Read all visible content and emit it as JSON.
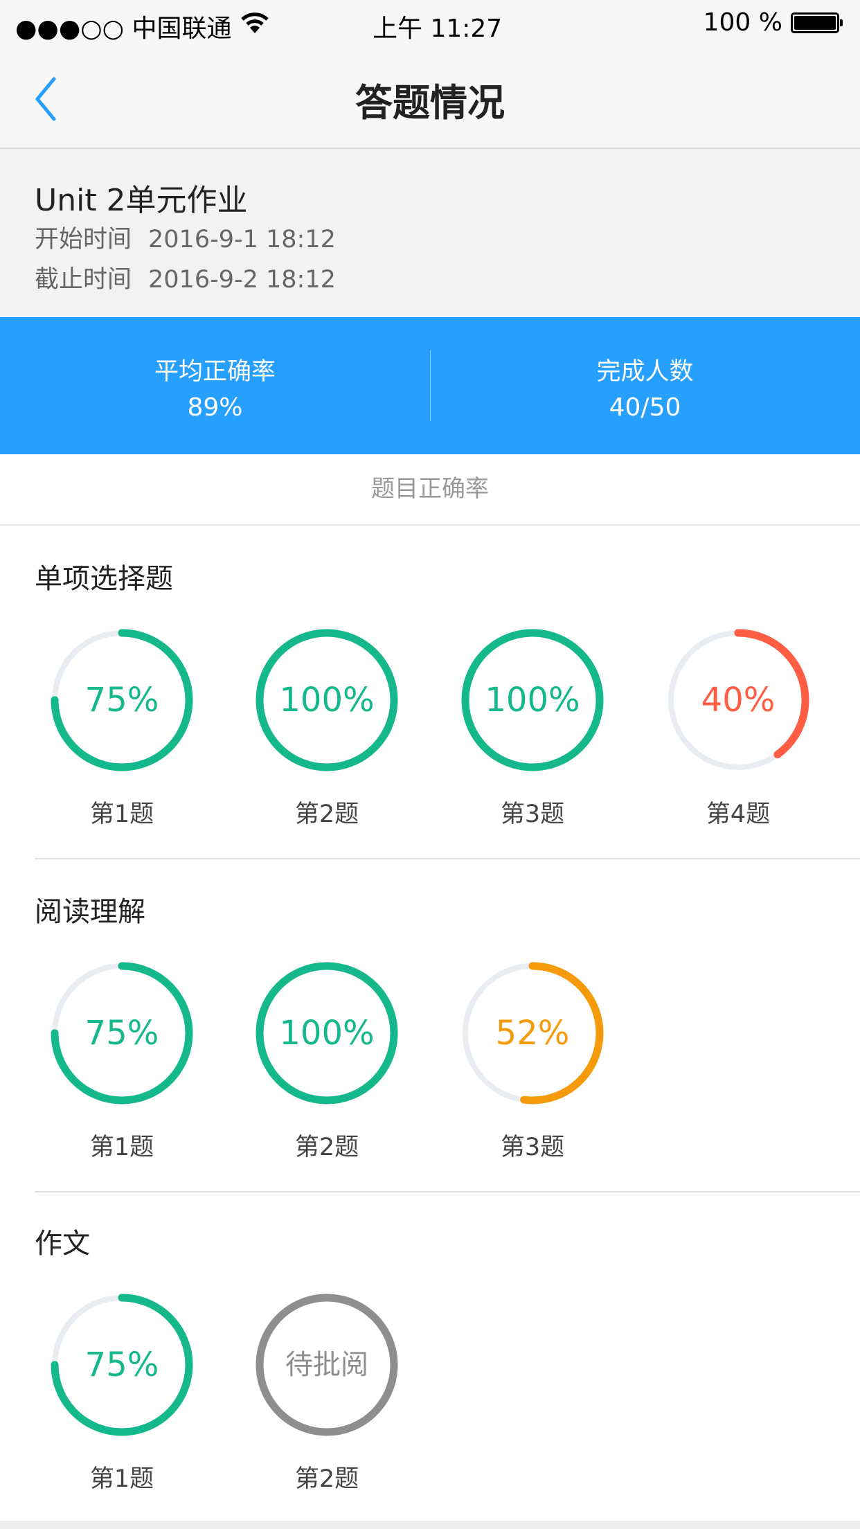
{
  "status_bar": {
    "carrier": "●●●○○ 中国联通",
    "time": "上午 11:27",
    "battery": "100 %"
  },
  "nav": {
    "title": "答题情况",
    "back_icon": "chevron-left-icon"
  },
  "assignment": {
    "title": "Unit 2单元作业",
    "start_label": "开始时间",
    "start_value": "2016-9-1 18:12",
    "end_label": "截止时间",
    "end_value": "2016-9-2 18:12"
  },
  "summary": {
    "avg_label": "平均正确率",
    "avg_value": "89%",
    "done_label": "完成人数",
    "done_value": "40/50"
  },
  "subtitle": "题目正确率",
  "colors": {
    "accent": "#279ffe",
    "good": "#14b88a",
    "bad": "#ff5e45",
    "mid": "#f49a0b",
    "pending": "#8e8e8e",
    "track": "#e9ecf1"
  },
  "sections": [
    {
      "title": "单项选择题",
      "questions": [
        {
          "label": "第1题",
          "text": "75%",
          "value": 75,
          "status": "good"
        },
        {
          "label": "第2题",
          "text": "100%",
          "value": 100,
          "status": "good"
        },
        {
          "label": "第3题",
          "text": "100%",
          "value": 100,
          "status": "good"
        },
        {
          "label": "第4题",
          "text": "40%",
          "value": 40,
          "status": "bad"
        }
      ]
    },
    {
      "title": "阅读理解",
      "questions": [
        {
          "label": "第1题",
          "text": "75%",
          "value": 75,
          "status": "good"
        },
        {
          "label": "第2题",
          "text": "100%",
          "value": 100,
          "status": "good"
        },
        {
          "label": "第3题",
          "text": "52%",
          "value": 52,
          "status": "mid"
        }
      ]
    },
    {
      "title": "作文",
      "questions": [
        {
          "label": "第1题",
          "text": "75%",
          "value": 75,
          "status": "good"
        },
        {
          "label": "第2题",
          "text": "待批阅",
          "value": 100,
          "status": "pending"
        }
      ]
    }
  ]
}
